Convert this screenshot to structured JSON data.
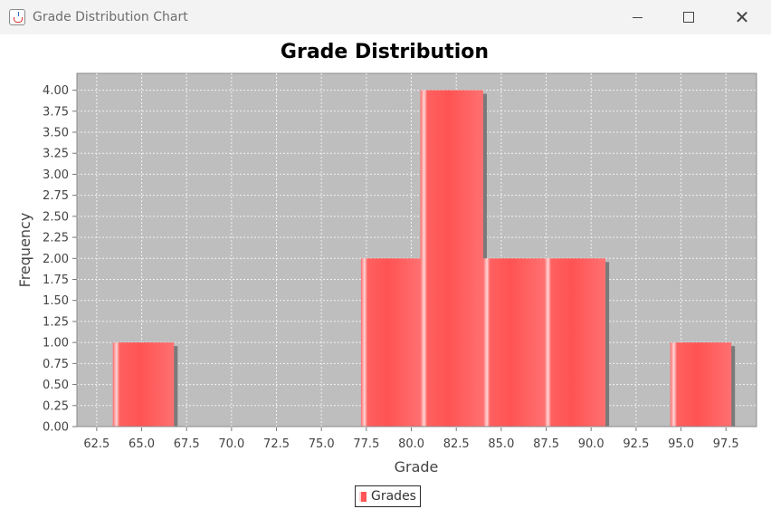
{
  "window": {
    "title": "Grade Distribution Chart"
  },
  "chart_data": {
    "type": "bar",
    "title": "Grade Distribution",
    "xlabel": "Grade",
    "ylabel": "Frequency",
    "xlim": [
      61.4,
      99.2
    ],
    "ylim": [
      0,
      4.2
    ],
    "grid": true,
    "legend_position": "bottom",
    "series": [
      {
        "name": "Grades",
        "color": "#ff5555",
        "bins": [
          {
            "start": 63.4,
            "end": 66.8,
            "value": 1
          },
          {
            "start": 77.2,
            "end": 80.5,
            "value": 2
          },
          {
            "start": 80.5,
            "end": 84.0,
            "value": 4
          },
          {
            "start": 84.0,
            "end": 87.4,
            "value": 2
          },
          {
            "start": 87.4,
            "end": 90.8,
            "value": 2
          },
          {
            "start": 94.4,
            "end": 97.8,
            "value": 1
          }
        ]
      }
    ],
    "x_ticks": [
      "62.5",
      "65.0",
      "67.5",
      "70.0",
      "72.5",
      "75.0",
      "77.5",
      "80.0",
      "82.5",
      "85.0",
      "87.5",
      "90.0",
      "92.5",
      "95.0",
      "97.5"
    ],
    "y_ticks": [
      "0.00",
      "0.25",
      "0.50",
      "0.75",
      "1.00",
      "1.25",
      "1.50",
      "1.75",
      "2.00",
      "2.25",
      "2.50",
      "2.75",
      "3.00",
      "3.25",
      "3.50",
      "3.75",
      "4.00"
    ]
  }
}
